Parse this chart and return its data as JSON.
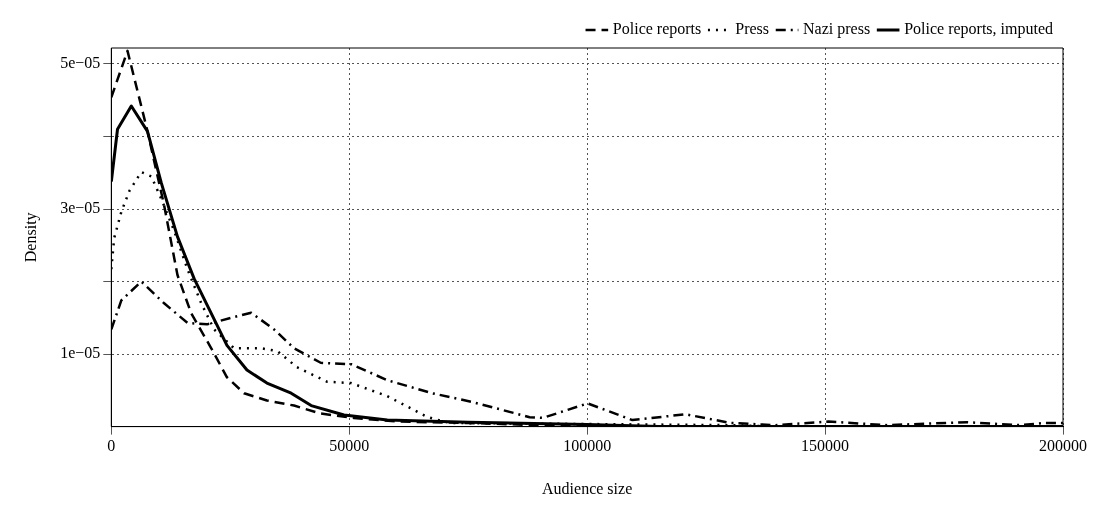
{
  "chart_data": {
    "type": "line",
    "xlabel": "Audience size",
    "ylabel": "Density",
    "xlim": [
      0,
      200000
    ],
    "xticks": [
      0,
      50000,
      100000,
      150000,
      200000
    ],
    "ylim": [
      0,
      5.22e-05
    ],
    "yticks": [
      {
        "value": 1e-05,
        "label": "1e−05"
      },
      {
        "value": 2e-05,
        "label": null
      },
      {
        "value": 3e-05,
        "label": "3e−05"
      },
      {
        "value": 4e-05,
        "label": null
      },
      {
        "value": 5e-05,
        "label": "5e−05"
      }
    ],
    "grid": true,
    "legend": "top right",
    "marker": "none",
    "series": [
      {
        "name": "Police reports",
        "color": "#000000",
        "line_style": "dashed",
        "x": [
          0,
          3400,
          7500,
          11100,
          13900,
          16800,
          21000,
          24300,
          27900,
          32700,
          38400,
          44000,
          51000,
          60000,
          75000,
          90000,
          110000,
          200000
        ],
        "values": [
          4.54e-05,
          5.18e-05,
          4.1e-05,
          3.05e-05,
          2.09e-05,
          1.56e-05,
          1.08e-05,
          6.8e-06,
          4.6e-06,
          3.6e-06,
          2.9e-06,
          1.8e-06,
          1.2e-06,
          7e-07,
          5e-07,
          2e-07,
          0,
          0
        ]
      },
      {
        "name": "Press",
        "color": "#000000",
        "line_style": "dotted",
        "x": [
          0,
          600,
          2100,
          3800,
          6300,
          8400,
          10500,
          13200,
          16000,
          18900,
          21600,
          25800,
          31500,
          34900,
          39000,
          45300,
          50400,
          58000,
          66500,
          71100,
          130000,
          140000,
          200000
        ],
        "values": [
          2.17e-05,
          2.6e-05,
          2.96e-05,
          3.25e-05,
          3.51e-05,
          3.45e-05,
          3.14e-05,
          2.7e-05,
          2.17e-05,
          1.7e-05,
          1.34e-05,
          1.08e-05,
          1.08e-05,
          1.04e-05,
          8.2e-06,
          6.2e-06,
          6e-06,
          4.2e-06,
          1.3e-06,
          5e-07,
          2e-07,
          0,
          0
        ]
      },
      {
        "name": "Nazi press",
        "color": "#000000",
        "line_style": "dashdot",
        "x": [
          0,
          2100,
          6300,
          11100,
          16000,
          20100,
          25200,
          29400,
          34200,
          38400,
          44000,
          50400,
          58000,
          67400,
          75800,
          87900,
          90700,
          100100,
          109500,
          120700,
          130100,
          139600,
          150700,
          162800,
          179900,
          191000,
          196000,
          200000
        ],
        "values": [
          1.34e-05,
          1.74e-05,
          2e-05,
          1.7e-05,
          1.43e-05,
          1.41e-05,
          1.5e-05,
          1.57e-05,
          1.34e-05,
          1.08e-05,
          8.8e-06,
          8.6e-06,
          6.4e-06,
          4.6e-06,
          3.4e-06,
          1.3e-06,
          1.2e-06,
          3.2e-06,
          9e-07,
          1.7e-06,
          5e-07,
          2e-07,
          7e-07,
          2e-07,
          6e-07,
          2e-07,
          5e-07,
          5e-07
        ]
      },
      {
        "name": "Police reports, imputed",
        "color": "#000000",
        "line_style": "solid",
        "x": [
          0,
          1300,
          4200,
          7600,
          10500,
          13900,
          17400,
          21000,
          24300,
          28500,
          32700,
          37800,
          42000,
          48900,
          58000,
          75000,
          100000,
          115000,
          200000
        ],
        "values": [
          3.38e-05,
          4.1e-05,
          4.42e-05,
          4.07e-05,
          3.36e-05,
          2.62e-05,
          2.04e-05,
          1.56e-05,
          1.12e-05,
          7.8e-06,
          6e-06,
          4.6e-06,
          2.9e-06,
          1.6e-06,
          9e-07,
          6e-07,
          3e-07,
          0,
          0
        ]
      }
    ]
  }
}
